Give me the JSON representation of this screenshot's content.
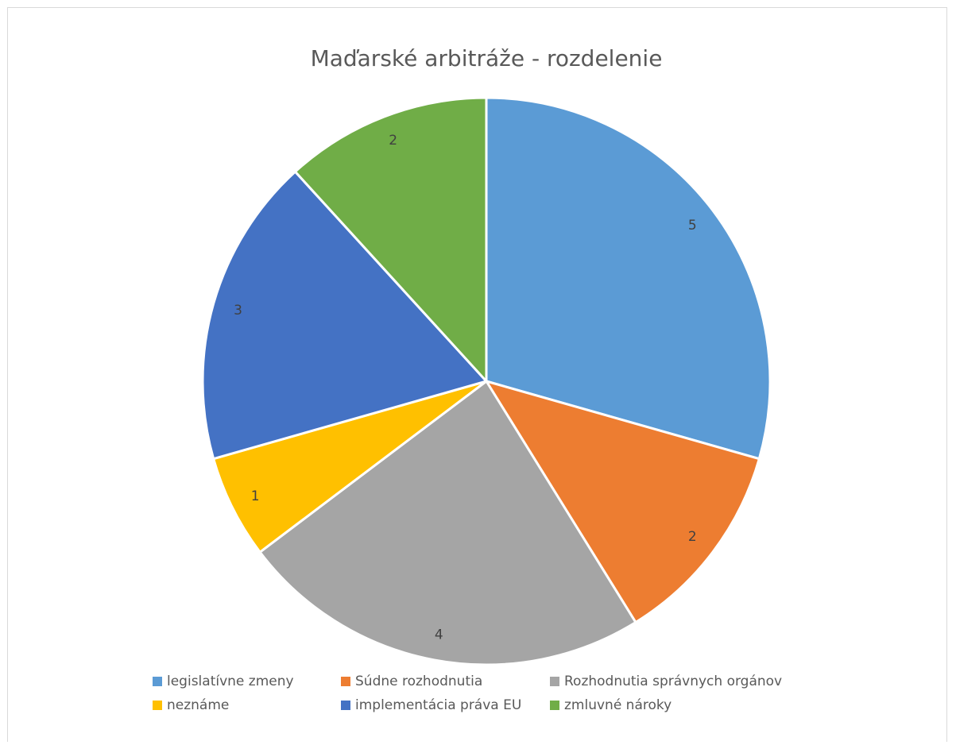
{
  "chart_data": {
    "type": "pie",
    "title": "Maďarské arbitráže - rozdelenie",
    "categories": [
      "legislatívne zmeny",
      "Súdne rozhodnutia",
      "Rozhodnutia správnych orgánov",
      "neznáme",
      "implementácia práva EU",
      "zmluvné nároky"
    ],
    "values": [
      5,
      2,
      4,
      1,
      3,
      2
    ],
    "colors": [
      "#5b9bd5",
      "#ed7d31",
      "#a5a5a5",
      "#ffc000",
      "#4472c4",
      "#70ad47"
    ],
    "legend": "bottom"
  }
}
